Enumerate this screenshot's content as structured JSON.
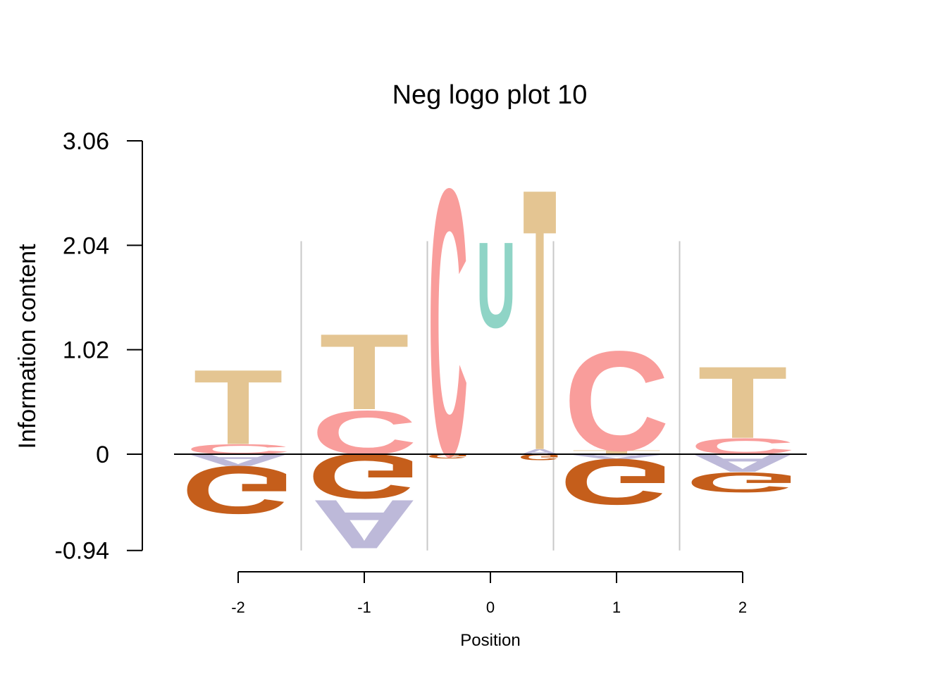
{
  "chart_data": {
    "type": "logo",
    "title": "Neg logo plot 10",
    "xlabel": "Position",
    "ylabel": "Information content",
    "ylim": [
      -0.94,
      3.06
    ],
    "yticks": [
      "3.06",
      "2.04",
      "1.02",
      "0",
      "-0.94"
    ],
    "ytick_values": [
      3.06,
      2.04,
      1.02,
      0,
      -0.94
    ],
    "positions": [
      "-2",
      "-1",
      "0",
      "1",
      "2"
    ],
    "colors": {
      "A": "#bdb9d9",
      "C": "#f99d9b",
      "G": "#c55e1b",
      "T": "#e4c592",
      "U": "#8fd4c6"
    },
    "columns": [
      {
        "position": "-2",
        "positive": [
          {
            "letter": "C",
            "from": 0.0,
            "to": 0.1
          },
          {
            "letter": "T",
            "from": 0.1,
            "to": 0.85
          }
        ],
        "negative": [
          {
            "letter": "A",
            "from": 0.0,
            "to": -0.12
          },
          {
            "letter": "G",
            "from": -0.12,
            "to": -0.6
          }
        ]
      },
      {
        "position": "-1",
        "positive": [
          {
            "letter": "C",
            "from": 0.0,
            "to": 0.44
          },
          {
            "letter": "T",
            "from": 0.44,
            "to": 1.2
          }
        ],
        "negative": [
          {
            "letter": "G",
            "from": 0.0,
            "to": -0.45
          },
          {
            "letter": "A",
            "from": -0.45,
            "to": -0.94
          }
        ]
      },
      {
        "position": "0",
        "positive": [
          {
            "letter": "C",
            "from": 0.0,
            "to": 2.68
          }
        ],
        "negative": [
          {
            "letter": "G",
            "from": 0.0,
            "to": -0.04
          }
        ]
      },
      {
        "position": "0.4",
        "positive": [
          {
            "letter": "U",
            "from": 1.24,
            "to": 2.1
          }
        ],
        "negative": []
      },
      {
        "position": "0.8",
        "positive": [
          {
            "letter": "A",
            "from": 0.0,
            "to": 0.05
          },
          {
            "letter": "T",
            "from": 0.05,
            "to": 2.68
          }
        ],
        "negative": [
          {
            "letter": "G",
            "from": 0.0,
            "to": -0.06
          }
        ]
      },
      {
        "position": "1",
        "positive": [
          {
            "letter": "T",
            "from": 0.0,
            "to": 0.04
          },
          {
            "letter": "C",
            "from": 0.04,
            "to": 1.04
          }
        ],
        "negative": [
          {
            "letter": "A",
            "from": 0.0,
            "to": -0.05
          },
          {
            "letter": "G",
            "from": -0.05,
            "to": -0.51
          }
        ]
      },
      {
        "position": "2",
        "positive": [
          {
            "letter": "C",
            "from": 0.0,
            "to": 0.16
          },
          {
            "letter": "T",
            "from": 0.16,
            "to": 0.88
          }
        ],
        "negative": [
          {
            "letter": "A",
            "from": 0.0,
            "to": -0.18
          },
          {
            "letter": "G",
            "from": -0.18,
            "to": -0.38
          }
        ]
      }
    ]
  }
}
